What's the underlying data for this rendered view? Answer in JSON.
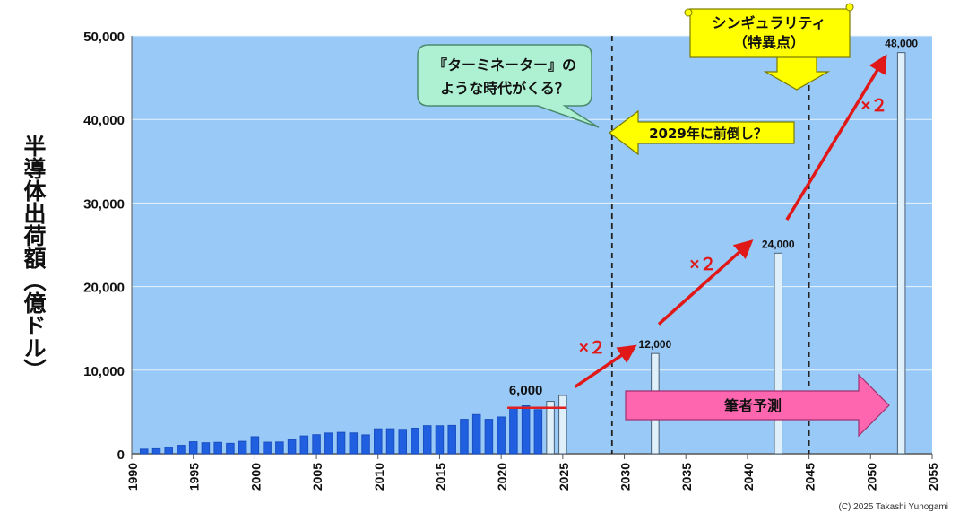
{
  "chart_data": {
    "type": "bar",
    "title": "",
    "xlabel": "",
    "ylabel": "半導体出荷額（億ドル）",
    "xlim": [
      1990,
      2055
    ],
    "ylim": [
      0,
      50000
    ],
    "x_ticks": [
      "1990",
      "1995",
      "2000",
      "2005",
      "2010",
      "2015",
      "2020",
      "2025",
      "2030",
      "2035",
      "2040",
      "2045",
      "2050",
      "2055"
    ],
    "y_ticks": [
      "0",
      "10,000",
      "20,000",
      "30,000",
      "40,000",
      "50,000"
    ],
    "grid": true,
    "legend": "none",
    "series": [
      {
        "kind": "actual",
        "color": "#1f5fe0",
        "x": [
          1991,
          1992,
          1993,
          1994,
          1995,
          1996,
          1997,
          1998,
          1999,
          2000,
          2001,
          2002,
          2003,
          2004,
          2005,
          2006,
          2007,
          2008,
          2009,
          2010,
          2011,
          2012,
          2013,
          2014,
          2015,
          2016,
          2017,
          2018,
          2019,
          2020,
          2021,
          2022,
          2023
        ],
        "values": [
          550,
          600,
          770,
          1010,
          1440,
          1320,
          1370,
          1250,
          1490,
          2040,
          1390,
          1410,
          1660,
          2130,
          2280,
          2480,
          2560,
          2490,
          2260,
          2980,
          2990,
          2920,
          3060,
          3360,
          3350,
          3390,
          4120,
          4690,
          4120,
          4400,
          5560,
          5740,
          5270
        ]
      },
      {
        "kind": "forecast",
        "color": "#dff0fb",
        "x": [
          2024,
          2025,
          2032.5,
          2042.5,
          2052.5
        ],
        "values": [
          6270,
          6970,
          12000,
          24000,
          48000
        ]
      }
    ],
    "data_labels": [
      {
        "x": 2022,
        "y": 6000,
        "text": "6,000"
      },
      {
        "x": 2032.5,
        "y": 12000,
        "text": "12,000"
      },
      {
        "x": 2042.5,
        "y": 24000,
        "text": "24,000"
      },
      {
        "x": 2052.5,
        "y": 48000,
        "text": "48,000"
      }
    ],
    "baseline_marker": {
      "x0": 2020.5,
      "x1": 2025.3,
      "y": 5500,
      "color": "#e02020"
    },
    "vertical_lines": [
      2029,
      2045
    ],
    "annotations": {
      "callout": "『ターミネーター』の\nような時代がくる？",
      "forward_arrow": "2029年に前倒し？",
      "singularity": "シンギュラリティ\n（特異点）",
      "forecast_arrow": "筆者予測",
      "multipliers": [
        "×２",
        "×２",
        "×２"
      ]
    },
    "colors": {
      "plot_bg": "#99c9f7",
      "growth_arrow": "#e01818",
      "callout_bg": "#aef0d2",
      "yellow": "#ffff00",
      "pink": "#ff66b0"
    }
  },
  "credit": "(C) 2025 Takashi Yunogami"
}
